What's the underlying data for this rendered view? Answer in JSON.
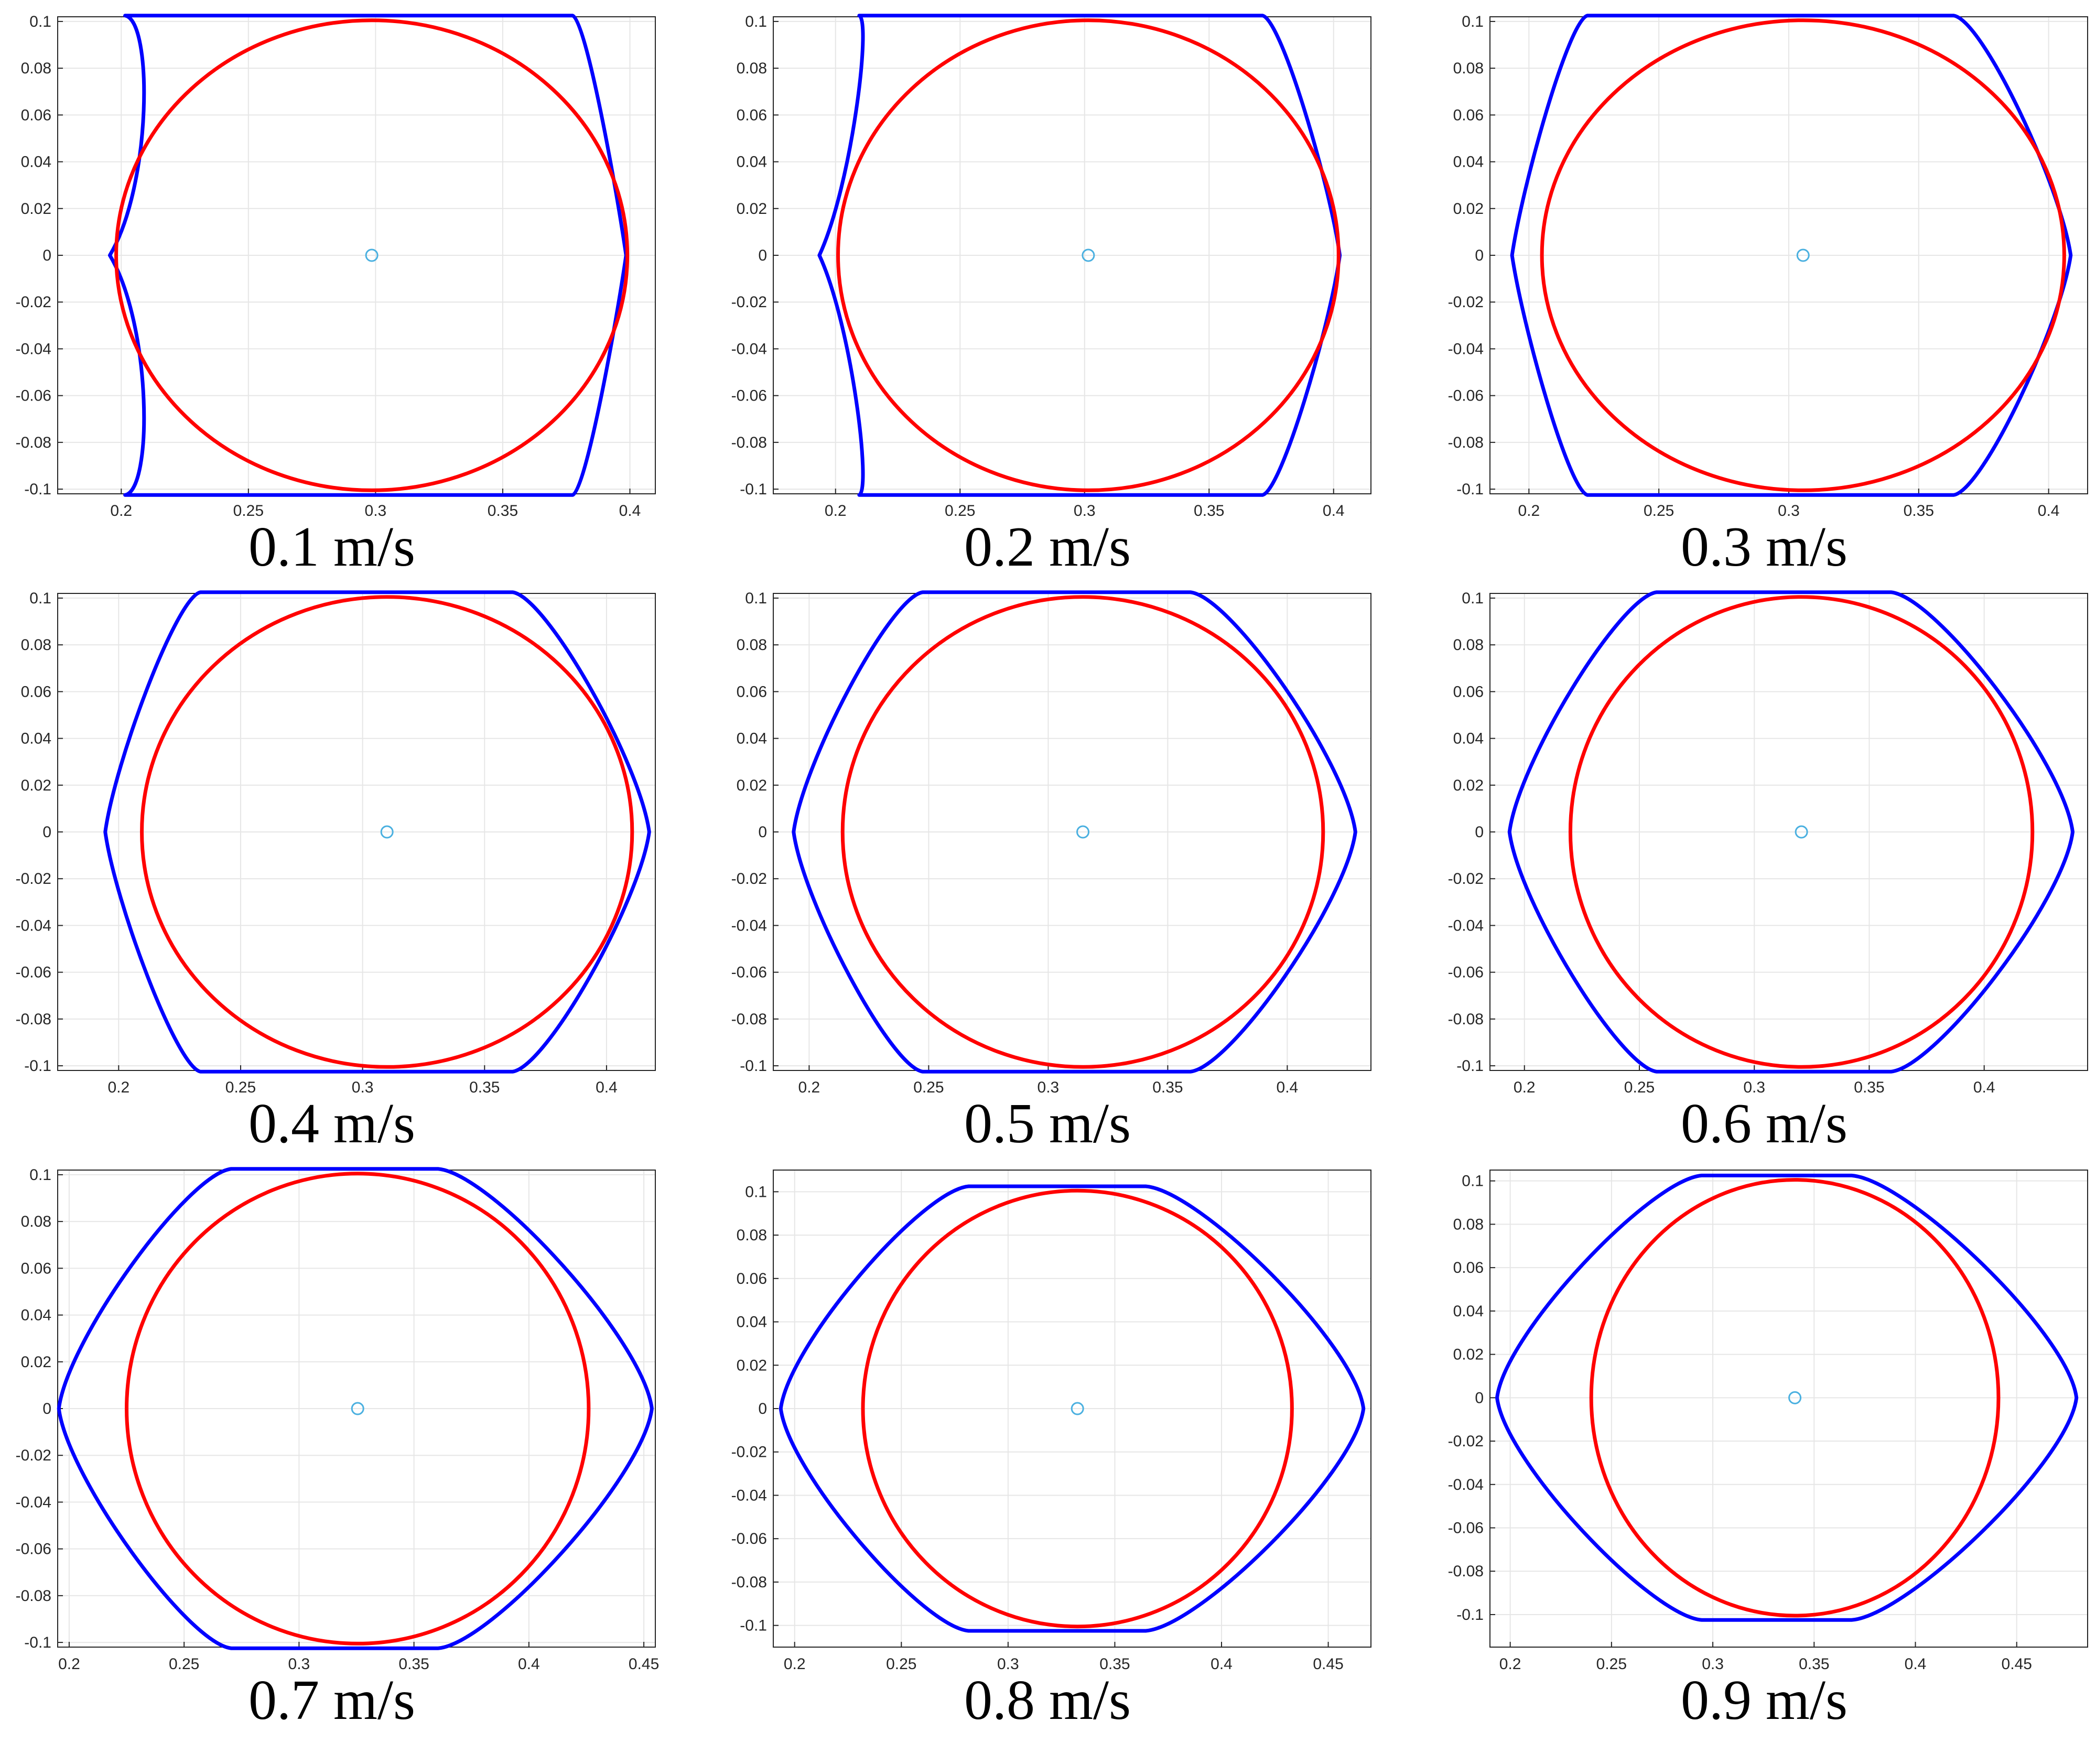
{
  "colors": {
    "footprint": "#0000ff",
    "circle": "#ff0000",
    "center": "#4ab0e0",
    "grid": "#e6e6e6",
    "axis": "#262626"
  },
  "chart_data": [
    {
      "type": "line",
      "caption": "0.1 m/s",
      "xlim": [
        0.175,
        0.41
      ],
      "ylim": [
        -0.102,
        0.102
      ],
      "xticks": [
        0.2,
        0.25,
        0.3,
        0.35,
        0.4
      ],
      "xtick_labels": [
        "0.2",
        "0.25",
        "0.3",
        "0.35",
        "0.4"
      ],
      "yticks": [
        0.1,
        0.08,
        0.06,
        0.04,
        0.02,
        0,
        -0.02,
        -0.04,
        -0.06,
        -0.08,
        -0.1
      ],
      "ytick_labels": [
        "0.1",
        "0.08",
        "0.06",
        "0.04",
        "0.02",
        "0",
        "-0.02",
        "-0.04",
        "-0.06",
        "-0.08",
        "-0.1"
      ],
      "grid": true,
      "center": [
        0.2985,
        0
      ],
      "circle": {
        "center": [
          0.2985,
          0
        ],
        "radius": 0.1005
      },
      "footprint": {
        "top": 0.1025,
        "left_tip": 0.1955,
        "right_tip": 0.3985,
        "top_left": 0.2015,
        "top_right": 0.3775,
        "left_bulge": 0.0125,
        "right_bulge": 0.0
      }
    },
    {
      "type": "line",
      "caption": "0.2 m/s",
      "xlim": [
        0.175,
        0.415
      ],
      "ylim": [
        -0.102,
        0.102
      ],
      "xticks": [
        0.2,
        0.25,
        0.3,
        0.35,
        0.4
      ],
      "xtick_labels": [
        "0.2",
        "0.25",
        "0.3",
        "0.35",
        "0.4"
      ],
      "yticks": [
        0.1,
        0.08,
        0.06,
        0.04,
        0.02,
        0,
        -0.02,
        -0.04,
        -0.06,
        -0.08,
        -0.1
      ],
      "ytick_labels": [
        "0.1",
        "0.08",
        "0.06",
        "0.04",
        "0.02",
        "0",
        "-0.02",
        "-0.04",
        "-0.06",
        "-0.08",
        "-0.1"
      ],
      "grid": true,
      "center": [
        0.3015,
        0
      ],
      "circle": {
        "center": [
          0.3015,
          0
        ],
        "radius": 0.1005
      },
      "footprint": {
        "top": 0.1025,
        "left_tip": 0.1935,
        "right_tip": 0.4025,
        "top_left": 0.2095,
        "top_right": 0.3715,
        "left_bulge": 0.009,
        "right_bulge": 0.0
      }
    },
    {
      "type": "line",
      "caption": "0.3 m/s",
      "xlim": [
        0.185,
        0.415
      ],
      "ylim": [
        -0.102,
        0.102
      ],
      "xticks": [
        0.2,
        0.25,
        0.3,
        0.35,
        0.4
      ],
      "xtick_labels": [
        "0.2",
        "0.25",
        "0.3",
        "0.35",
        "0.4"
      ],
      "yticks": [
        0.1,
        0.08,
        0.06,
        0.04,
        0.02,
        0,
        -0.02,
        -0.04,
        -0.06,
        -0.08,
        -0.1
      ],
      "ytick_labels": [
        "0.1",
        "0.08",
        "0.06",
        "0.04",
        "0.02",
        "0",
        "-0.02",
        "-0.04",
        "-0.06",
        "-0.08",
        "-0.1"
      ],
      "grid": true,
      "center": [
        0.3055,
        0
      ],
      "circle": {
        "center": [
          0.3055,
          0
        ],
        "radius": 0.1005
      },
      "footprint": {
        "top": 0.1025,
        "left_tip": 0.1935,
        "right_tip": 0.4085,
        "top_left": 0.2225,
        "top_right": 0.3635,
        "left_bulge": 0.0,
        "right_bulge": 0.0
      }
    },
    {
      "type": "line",
      "caption": "0.4 m/s",
      "xlim": [
        0.175,
        0.42
      ],
      "ylim": [
        -0.102,
        0.102
      ],
      "xticks": [
        0.2,
        0.25,
        0.3,
        0.35,
        0.4
      ],
      "xtick_labels": [
        "0.2",
        "0.25",
        "0.3",
        "0.35",
        "0.4"
      ],
      "yticks": [
        0.1,
        0.08,
        0.06,
        0.04,
        0.02,
        0,
        -0.02,
        -0.04,
        -0.06,
        -0.08,
        -0.1
      ],
      "ytick_labels": [
        "0.1",
        "0.08",
        "0.06",
        "0.04",
        "0.02",
        "0",
        "-0.02",
        "-0.04",
        "-0.06",
        "-0.08",
        "-0.1"
      ],
      "grid": true,
      "center": [
        0.31,
        0
      ],
      "circle": {
        "center": [
          0.31,
          0
        ],
        "radius": 0.1005
      },
      "footprint": {
        "top": 0.1025,
        "left_tip": 0.1945,
        "right_tip": 0.4175,
        "top_left": 0.2335,
        "top_right": 0.3615,
        "left_bulge": 0.0,
        "right_bulge": 0.0
      }
    },
    {
      "type": "line",
      "caption": "0.5 m/s",
      "xlim": [
        0.185,
        0.435
      ],
      "ylim": [
        -0.102,
        0.102
      ],
      "xticks": [
        0.2,
        0.25,
        0.3,
        0.35,
        0.4
      ],
      "xtick_labels": [
        "0.2",
        "0.25",
        "0.3",
        "0.35",
        "0.4"
      ],
      "yticks": [
        0.1,
        0.08,
        0.06,
        0.04,
        0.02,
        0,
        -0.02,
        -0.04,
        -0.06,
        -0.08,
        -0.1
      ],
      "ytick_labels": [
        "0.1",
        "0.08",
        "0.06",
        "0.04",
        "0.02",
        "0",
        "-0.02",
        "-0.04",
        "-0.06",
        "-0.08",
        "-0.1"
      ],
      "grid": true,
      "center": [
        0.3145,
        0
      ],
      "circle": {
        "center": [
          0.3145,
          0
        ],
        "radius": 0.1005
      },
      "footprint": {
        "top": 0.1025,
        "left_tip": 0.1935,
        "right_tip": 0.4285,
        "top_left": 0.2475,
        "top_right": 0.3595,
        "left_bulge": 0.0,
        "right_bulge": 0.0
      }
    },
    {
      "type": "line",
      "caption": "0.6 m/s",
      "xlim": [
        0.185,
        0.445
      ],
      "ylim": [
        -0.102,
        0.102
      ],
      "xticks": [
        0.2,
        0.25,
        0.3,
        0.35,
        0.4
      ],
      "xtick_labels": [
        "0.2",
        "0.25",
        "0.3",
        "0.35",
        "0.4"
      ],
      "yticks": [
        0.1,
        0.08,
        0.06,
        0.04,
        0.02,
        0,
        -0.02,
        -0.04,
        -0.06,
        -0.08,
        -0.1
      ],
      "ytick_labels": [
        "0.1",
        "0.08",
        "0.06",
        "0.04",
        "0.02",
        "0",
        "-0.02",
        "-0.04",
        "-0.06",
        "-0.08",
        "-0.1"
      ],
      "grid": true,
      "center": [
        0.3205,
        0
      ],
      "circle": {
        "center": [
          0.3205,
          0
        ],
        "radius": 0.1005
      },
      "footprint": {
        "top": 0.1025,
        "left_tip": 0.1935,
        "right_tip": 0.4385,
        "top_left": 0.2575,
        "top_right": 0.3595,
        "left_bulge": 0.0,
        "right_bulge": 0.0
      }
    },
    {
      "type": "line",
      "caption": "0.7 m/s",
      "xlim": [
        0.195,
        0.455
      ],
      "ylim": [
        -0.102,
        0.102
      ],
      "xticks": [
        0.2,
        0.25,
        0.3,
        0.35,
        0.4,
        0.45
      ],
      "xtick_labels": [
        "0.2",
        "0.25",
        "0.3",
        "0.35",
        "0.4",
        "0.45"
      ],
      "yticks": [
        0.1,
        0.08,
        0.06,
        0.04,
        0.02,
        0,
        -0.02,
        -0.04,
        -0.06,
        -0.08,
        -0.1
      ],
      "ytick_labels": [
        "0.1",
        "0.08",
        "0.06",
        "0.04",
        "0.02",
        "0",
        "-0.02",
        "-0.04",
        "-0.06",
        "-0.08",
        "-0.1"
      ],
      "grid": true,
      "center": [
        0.3255,
        0
      ],
      "circle": {
        "center": [
          0.3255,
          0
        ],
        "radius": 0.1005
      },
      "footprint": {
        "top": 0.1025,
        "left_tip": 0.1955,
        "right_tip": 0.4535,
        "top_left": 0.2705,
        "top_right": 0.3605,
        "left_bulge": 0.0,
        "right_bulge": 0.0
      }
    },
    {
      "type": "line",
      "caption": "0.8 m/s",
      "xlim": [
        0.19,
        0.47
      ],
      "ylim": [
        -0.11,
        0.11
      ],
      "xticks": [
        0.2,
        0.25,
        0.3,
        0.35,
        0.4,
        0.45
      ],
      "xtick_labels": [
        "0.2",
        "0.25",
        "0.3",
        "0.35",
        "0.4",
        "0.45"
      ],
      "yticks": [
        0.1,
        0.08,
        0.06,
        0.04,
        0.02,
        0,
        -0.02,
        -0.04,
        -0.06,
        -0.08,
        -0.1
      ],
      "ytick_labels": [
        "0.1",
        "0.08",
        "0.06",
        "0.04",
        "0.02",
        "0",
        "-0.02",
        "-0.04",
        "-0.06",
        "-0.08",
        "-0.1"
      ],
      "grid": true,
      "center": [
        0.3325,
        0
      ],
      "circle": {
        "center": [
          0.3325,
          0
        ],
        "radius": 0.1005
      },
      "footprint": {
        "top": 0.1025,
        "left_tip": 0.1935,
        "right_tip": 0.4665,
        "top_left": 0.2815,
        "top_right": 0.3645,
        "left_bulge": 0.0,
        "right_bulge": 0.0
      }
    },
    {
      "type": "line",
      "caption": "0.9 m/s",
      "xlim": [
        0.19,
        0.485
      ],
      "ylim": [
        -0.115,
        0.105
      ],
      "xticks": [
        0.2,
        0.25,
        0.3,
        0.35,
        0.4,
        0.45
      ],
      "xtick_labels": [
        "0.2",
        "0.25",
        "0.3",
        "0.35",
        "0.4",
        "0.45"
      ],
      "yticks": [
        0.1,
        0.08,
        0.06,
        0.04,
        0.02,
        0,
        -0.02,
        -0.04,
        -0.06,
        -0.08,
        -0.1
      ],
      "ytick_labels": [
        "0.1",
        "0.08",
        "0.06",
        "0.04",
        "0.02",
        "0",
        "-0.02",
        "-0.04",
        "-0.06",
        "-0.08",
        "-0.1"
      ],
      "grid": true,
      "center": [
        0.3405,
        0
      ],
      "circle": {
        "center": [
          0.3405,
          0
        ],
        "radius": 0.1005
      },
      "footprint": {
        "top": 0.1025,
        "left_tip": 0.1935,
        "right_tip": 0.4795,
        "top_left": 0.2945,
        "top_right": 0.3685,
        "left_bulge": 0.0,
        "right_bulge": 0.0
      }
    }
  ]
}
